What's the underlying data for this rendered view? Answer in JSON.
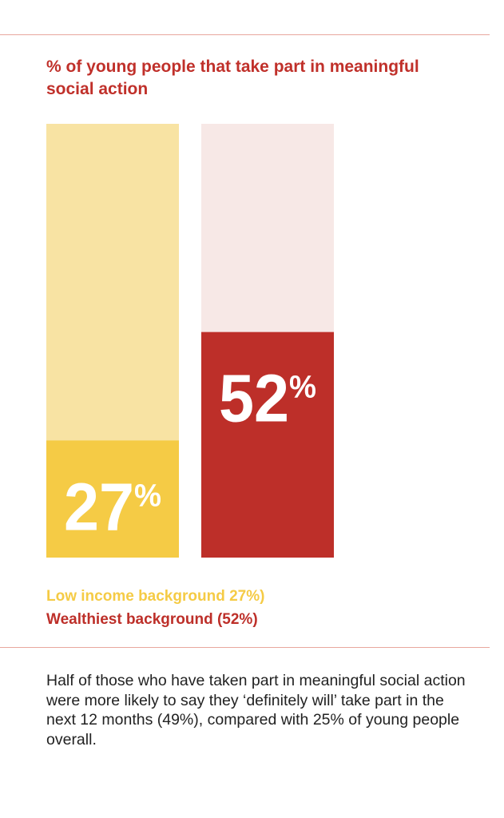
{
  "chart_data": {
    "type": "bar",
    "title": "% of young people that take part in meaningful social action",
    "categories": [
      "Low income background",
      "Wealthiest background"
    ],
    "values": [
      27,
      52
    ],
    "value_labels": [
      "27",
      "52"
    ],
    "value_suffix": "%",
    "ylim": [
      0,
      100
    ],
    "grid": false,
    "legend_placement": "bottom-left",
    "colors": {
      "low_income_fill": "#f5cb45",
      "low_income_track": "#f8e3a3",
      "wealthiest_fill": "#bd2f29",
      "wealthiest_track": "#f7e8e6"
    }
  },
  "legend": {
    "low_income": "Low income background 27%)",
    "wealthiest": "Wealthiest background (52%)"
  },
  "caption": "Half of those who have taken part in meaningful social action were more likely to say they ‘definitely will’ take part in the next 12 months (49%), compared with 25% of young people overall."
}
